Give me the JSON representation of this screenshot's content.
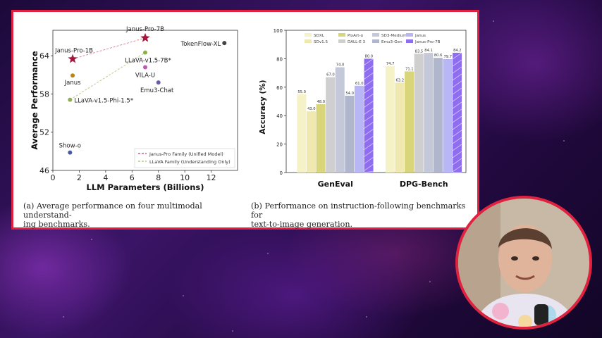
{
  "chart_data": [
    {
      "type": "scatter",
      "xlabel": "LLM Parameters (Billions)",
      "ylabel": "Average Performance",
      "xlim": [
        0,
        14
      ],
      "ylim": [
        46,
        68
      ],
      "xticks": [
        "0",
        "2",
        "4",
        "6",
        "8",
        "10",
        "12"
      ],
      "yticks": [
        "46",
        "52",
        "58",
        "64"
      ],
      "points": [
        {
          "label": "Janus-Pro-1B",
          "x": 1.5,
          "y": 63.5,
          "color": "#a3173c",
          "marker": "star"
        },
        {
          "label": "Janus-Pro-7B",
          "x": 7.0,
          "y": 66.8,
          "color": "#a3173c",
          "marker": "star"
        },
        {
          "label": "Janus",
          "x": 1.5,
          "y": 60.9,
          "color": "#b8860b",
          "marker": "circle"
        },
        {
          "label": "LLaVA-v1.5-Phi-1.5*",
          "x": 1.3,
          "y": 57.1,
          "color": "#8db04a",
          "marker": "circle"
        },
        {
          "label": "LLaVA-v1.5-7B*",
          "x": 7.0,
          "y": 64.5,
          "color": "#8db04a",
          "marker": "circle"
        },
        {
          "label": "VILA-U",
          "x": 7.0,
          "y": 62.2,
          "color": "#c056b0",
          "marker": "circle"
        },
        {
          "label": "Emu3-Chat",
          "x": 8.0,
          "y": 59.8,
          "color": "#6a5aa8",
          "marker": "circle"
        },
        {
          "label": "TokenFlow-XL",
          "x": 13.0,
          "y": 66.0,
          "color": "#444444",
          "marker": "circle"
        },
        {
          "label": "Show-o",
          "x": 1.3,
          "y": 48.8,
          "color": "#4a5aa0",
          "marker": "circle"
        }
      ],
      "legend": [
        {
          "name": "Janus-Pro Family (Unified Model)",
          "color": "#a3173c"
        },
        {
          "name": "LLaVA Family (Understanding Only)",
          "color": "#8db04a"
        }
      ],
      "legend_position": "lower-right",
      "caption": [
        "(a)  Average performance on four multimodal understand-",
        "ing benchmarks."
      ]
    },
    {
      "type": "bar",
      "ylabel": "Accuracy (%)",
      "ylim": [
        0,
        100
      ],
      "yticks": [
        "0",
        "20",
        "40",
        "60",
        "80",
        "100"
      ],
      "categories": [
        "GenEval",
        "DPG-Bench"
      ],
      "series": [
        {
          "name": "SDXL",
          "color": "#f6f2c8",
          "values": [
            55.0,
            74.7
          ]
        },
        {
          "name": "SDv1.5",
          "color": "#efe8b0",
          "values": [
            43.0,
            63.2
          ]
        },
        {
          "name": "PixArt-α",
          "color": "#d9d57a",
          "values": [
            48.0,
            71.1
          ]
        },
        {
          "name": "DALL-E 3",
          "color": "#cfcfcf",
          "values": [
            67.0,
            83.5
          ]
        },
        {
          "name": "SD3-Medium",
          "color": "#c4c8d8",
          "values": [
            74.0,
            84.1
          ]
        },
        {
          "name": "Emu3-Gen",
          "color": "#b0b7cc",
          "values": [
            54.0,
            80.6
          ]
        },
        {
          "name": "Janus",
          "color": "#b9b6f5",
          "values": [
            61.0,
            79.7
          ]
        },
        {
          "name": "Janus-Pro-7B",
          "color": "#8e6df0",
          "values": [
            80.0,
            84.2
          ]
        }
      ],
      "value_labels": [
        [
          "55.0",
          "43.0",
          "48.0",
          "67.0",
          "74.0",
          "54.0",
          "61.0",
          "80.0"
        ],
        [
          "74.7",
          "63.2",
          "71.1",
          "83.5",
          "84.1",
          "80.6",
          "79.7",
          "84.2"
        ]
      ],
      "legend_position": "top",
      "caption": [
        "(b)  Performance on instruction-following benchmarks for",
        "text-to-image generation."
      ]
    }
  ],
  "accent_color": "#e0213f"
}
